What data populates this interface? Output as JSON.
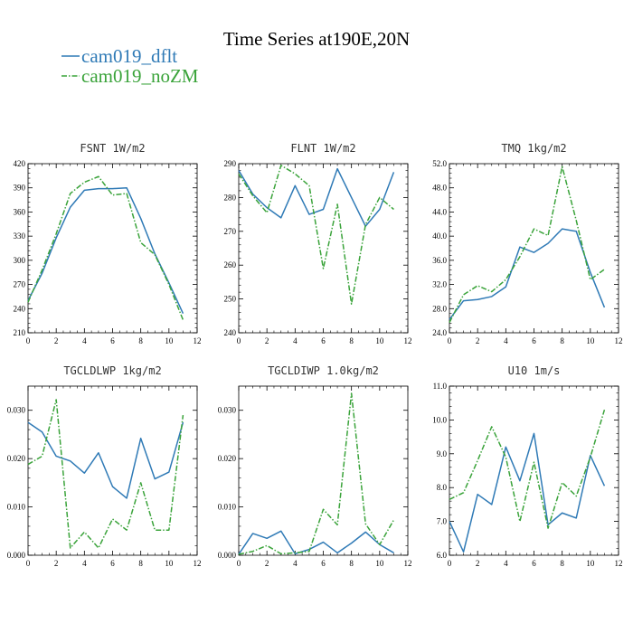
{
  "figure": {
    "title": "Time Series at190E,20N",
    "legend": [
      {
        "label": "cam019_dflt",
        "color": "#2f7ab6",
        "dash": "solid"
      },
      {
        "label": "cam019_noZM",
        "color": "#3aa33a",
        "dash": "dashdot"
      }
    ]
  },
  "chart_data": [
    {
      "type": "line",
      "title": "FSNT 1W/m2",
      "x": [
        0,
        1,
        2,
        3,
        4,
        5,
        6,
        7,
        8,
        9,
        10,
        11
      ],
      "xlim": [
        0,
        12
      ],
      "xticks": [
        0,
        2,
        4,
        6,
        8,
        10,
        12
      ],
      "xtick_labels": [
        "0",
        "2",
        "4",
        "6",
        "8",
        "10",
        "12"
      ],
      "ylim": [
        210,
        420
      ],
      "yticks": [
        210,
        240,
        270,
        300,
        330,
        360,
        390,
        420
      ],
      "ytick_labels": [
        "210",
        "240",
        "270",
        "300",
        "330",
        "360",
        "390",
        "420"
      ],
      "series": [
        {
          "name": "cam019_dflt",
          "values": [
            250,
            284,
            328,
            366,
            387,
            389,
            389,
            390,
            352,
            308,
            272,
            234
          ]
        },
        {
          "name": "cam019_noZM",
          "values": [
            248,
            288,
            333,
            383,
            397,
            404,
            381,
            383,
            322,
            307,
            270,
            226
          ]
        }
      ]
    },
    {
      "type": "line",
      "title": "FLNT 1W/m2",
      "x": [
        0,
        1,
        2,
        3,
        4,
        5,
        6,
        7,
        8,
        9,
        10,
        11
      ],
      "xlim": [
        0,
        12
      ],
      "xticks": [
        0,
        2,
        4,
        6,
        8,
        10,
        12
      ],
      "xtick_labels": [
        "0",
        "2",
        "4",
        "6",
        "8",
        "10",
        "12"
      ],
      "ylim": [
        240,
        290
      ],
      "yticks": [
        240,
        250,
        260,
        270,
        280,
        290
      ],
      "ytick_labels": [
        "240",
        "250",
        "260",
        "270",
        "280",
        "290"
      ],
      "series": [
        {
          "name": "cam019_dflt",
          "values": [
            288,
            281,
            277,
            274,
            283.5,
            275,
            276.5,
            288.5,
            280,
            271.5,
            276.5,
            287.5
          ]
        },
        {
          "name": "cam019_noZM",
          "values": [
            287,
            280.5,
            275.5,
            289.5,
            287,
            283.5,
            259,
            278,
            248.5,
            272,
            280,
            276.5
          ]
        }
      ]
    },
    {
      "type": "line",
      "title": "TMQ 1kg/m2",
      "x": [
        0,
        1,
        2,
        3,
        4,
        5,
        6,
        7,
        8,
        9,
        10,
        11
      ],
      "xlim": [
        0,
        12
      ],
      "xticks": [
        0,
        2,
        4,
        6,
        8,
        10,
        12
      ],
      "xtick_labels": [
        "0",
        "2",
        "4",
        "6",
        "8",
        "10",
        "12"
      ],
      "ylim": [
        24,
        52
      ],
      "yticks": [
        24,
        28,
        32,
        36,
        40,
        44,
        48,
        52
      ],
      "ytick_labels": [
        "24.0",
        "28.0",
        "32.0",
        "36.0",
        "40.0",
        "44.0",
        "48.0",
        "52.0"
      ],
      "series": [
        {
          "name": "cam019_dflt",
          "values": [
            26.2,
            29.3,
            29.5,
            30,
            31.6,
            38.2,
            37.3,
            38.8,
            41.2,
            40.8,
            34,
            28.2
          ]
        },
        {
          "name": "cam019_noZM",
          "values": [
            25.7,
            30.3,
            31.8,
            30.8,
            32.8,
            36.6,
            41.2,
            40.1,
            51.5,
            42.6,
            32.8,
            34.5
          ]
        }
      ]
    },
    {
      "type": "line",
      "title": "TGCLDLWP 1kg/m2",
      "x": [
        0,
        1,
        2,
        3,
        4,
        5,
        6,
        7,
        8,
        9,
        10,
        11
      ],
      "xlim": [
        0,
        12
      ],
      "xticks": [
        0,
        2,
        4,
        6,
        8,
        10,
        12
      ],
      "xtick_labels": [
        "0",
        "2",
        "4",
        "6",
        "8",
        "10",
        "12"
      ],
      "ylim": [
        0,
        0.035
      ],
      "yticks": [
        0,
        0.01,
        0.02,
        0.03
      ],
      "ytick_labels": [
        "0.000",
        "0.010",
        "0.020",
        "0.030"
      ],
      "series": [
        {
          "name": "cam019_dflt",
          "values": [
            0.0275,
            0.0255,
            0.0205,
            0.0195,
            0.017,
            0.0212,
            0.0142,
            0.0118,
            0.0242,
            0.0158,
            0.0172,
            0.0275
          ]
        },
        {
          "name": "cam019_noZM",
          "values": [
            0.0188,
            0.0205,
            0.0322,
            0.0015,
            0.0048,
            0.0015,
            0.0075,
            0.0052,
            0.015,
            0.0052,
            0.0052,
            0.029
          ]
        }
      ]
    },
    {
      "type": "line",
      "title": "TGCLDIWP 1.0kg/m2",
      "x": [
        0,
        1,
        2,
        3,
        4,
        5,
        6,
        7,
        8,
        9,
        10,
        11
      ],
      "xlim": [
        0,
        12
      ],
      "xticks": [
        0,
        2,
        4,
        6,
        8,
        10,
        12
      ],
      "xtick_labels": [
        "0",
        "2",
        "4",
        "6",
        "8",
        "10",
        "12"
      ],
      "ylim": [
        0,
        0.035
      ],
      "yticks": [
        0,
        0.01,
        0.02,
        0.03
      ],
      "ytick_labels": [
        "0.000",
        "0.010",
        "0.020",
        "0.030"
      ],
      "series": [
        {
          "name": "cam019_dflt",
          "values": [
            0.0002,
            0.0045,
            0.0035,
            0.005,
            0.0003,
            0.0012,
            0.0027,
            0.0005,
            0.0025,
            0.0048,
            0.0022,
            0.0005
          ]
        },
        {
          "name": "cam019_noZM",
          "values": [
            0.0002,
            0.0008,
            0.002,
            0.0003,
            0.0005,
            0.0008,
            0.0095,
            0.0063,
            0.0335,
            0.0065,
            0.0022,
            0.0073
          ]
        }
      ]
    },
    {
      "type": "line",
      "title": "U10 1m/s",
      "x": [
        0,
        1,
        2,
        3,
        4,
        5,
        6,
        7,
        8,
        9,
        10,
        11
      ],
      "xlim": [
        0,
        12
      ],
      "xticks": [
        0,
        2,
        4,
        6,
        8,
        10,
        12
      ],
      "xtick_labels": [
        "0",
        "2",
        "4",
        "6",
        "8",
        "10",
        "12"
      ],
      "ylim": [
        6,
        11
      ],
      "yticks": [
        6,
        7,
        8,
        9,
        10,
        11
      ],
      "ytick_labels": [
        "6.0",
        "7.0",
        "8.0",
        "9.0",
        "10.0",
        "11.0"
      ],
      "series": [
        {
          "name": "cam019_dflt",
          "values": [
            7.0,
            6.1,
            7.8,
            7.5,
            9.2,
            8.2,
            9.6,
            6.9,
            7.25,
            7.1,
            8.95,
            8.05
          ]
        },
        {
          "name": "cam019_noZM",
          "values": [
            7.65,
            7.85,
            8.8,
            9.8,
            8.9,
            7.0,
            8.75,
            6.8,
            8.15,
            7.75,
            8.9,
            10.3
          ]
        }
      ]
    }
  ]
}
